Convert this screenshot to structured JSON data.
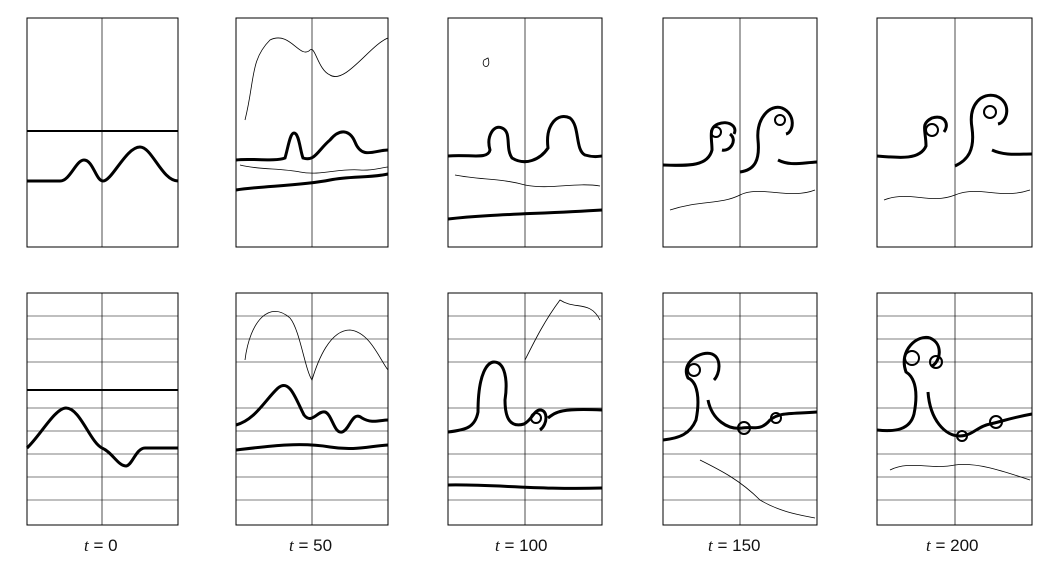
{
  "captions": [
    {
      "var": "t",
      "text": " = 0"
    },
    {
      "var": "t",
      "text": " = 50"
    },
    {
      "var": "t",
      "text": " = 100"
    },
    {
      "var": "t",
      "text": " = 150"
    },
    {
      "var": "t",
      "text": " = 200"
    }
  ],
  "time_steps": [
    0,
    50,
    100,
    150,
    200
  ],
  "colors": {
    "line": "#000000",
    "grid": "#444444",
    "background": "#ffffff"
  }
}
